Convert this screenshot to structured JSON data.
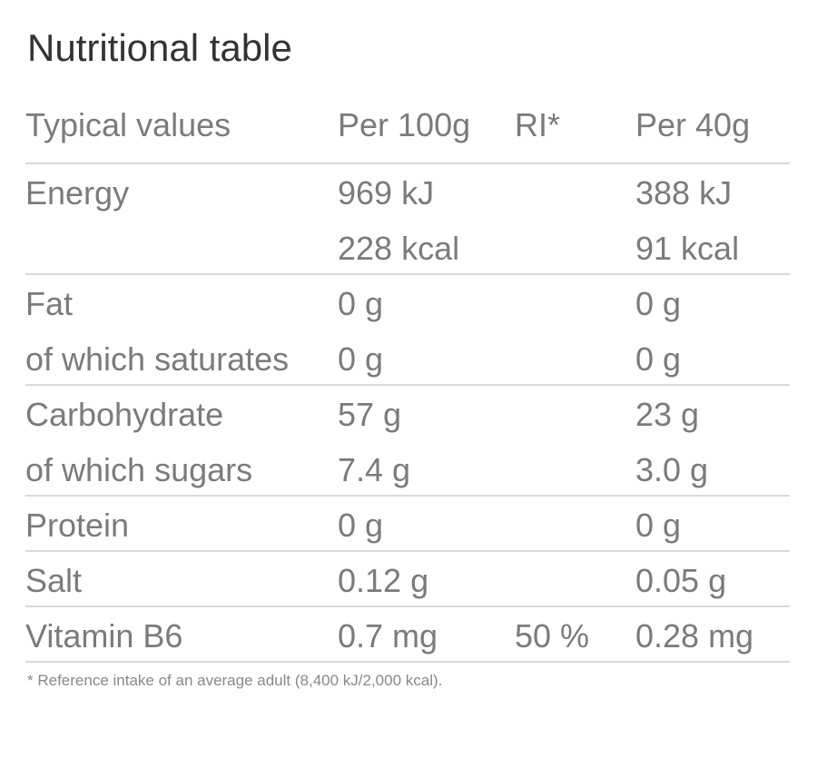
{
  "title": "Nutritional table",
  "table": {
    "header": {
      "label": "Typical values",
      "per100g": "Per 100g",
      "ri": "RI*",
      "per40g": "Per 40g"
    },
    "groups": [
      {
        "rows": [
          {
            "label": "Energy",
            "per100g": "969 kJ",
            "per40g": "388 kJ"
          },
          {
            "per100g": "228 kcal",
            "per40g": "91 kcal"
          }
        ]
      },
      {
        "rows": [
          {
            "label": "Fat",
            "per100g": "0 g",
            "per40g": "0 g"
          },
          {
            "label": "of which saturates",
            "per100g": "0 g",
            "per40g": "0 g"
          }
        ]
      },
      {
        "rows": [
          {
            "label": "Carbohydrate",
            "per100g": "57 g",
            "per40g": "23 g"
          },
          {
            "label": "of which sugars",
            "per100g": "7.4 g",
            "per40g": "3.0 g"
          }
        ]
      },
      {
        "rows": [
          {
            "label": "Protein",
            "per100g": "0 g",
            "per40g": "0 g"
          }
        ]
      },
      {
        "rows": [
          {
            "label": "Salt",
            "per100g": "0.12 g",
            "per40g": "0.05 g"
          }
        ]
      },
      {
        "rows": [
          {
            "label": "Vitamin B6",
            "per100g": "0.7 mg",
            "ri": "50 %",
            "per40g": "0.28 mg"
          }
        ]
      }
    ]
  },
  "footnote": "* Reference intake of an average adult (8,400 kJ/2,000 kcal)."
}
